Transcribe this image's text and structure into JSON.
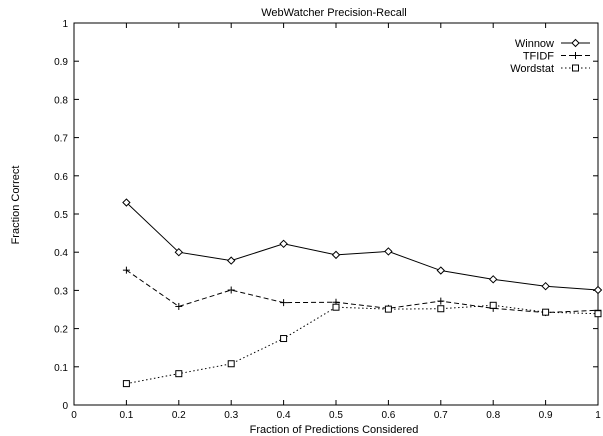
{
  "chart_data": {
    "type": "line",
    "title": "WebWatcher Precision-Recall",
    "xlabel": "Fraction of Predictions Considered",
    "ylabel": "Fraction Correct",
    "xlim": [
      0,
      1
    ],
    "ylim": [
      0,
      1
    ],
    "x_ticks": [
      "0",
      "0.1",
      "0.2",
      "0.3",
      "0.4",
      "0.5",
      "0.6",
      "0.7",
      "0.8",
      "0.9",
      "1"
    ],
    "y_ticks": [
      "0",
      "0.1",
      "0.2",
      "0.3",
      "0.4",
      "0.5",
      "0.6",
      "0.7",
      "0.8",
      "0.9",
      "1"
    ],
    "grid": false,
    "legend_position": "top-right",
    "x": [
      0.1,
      0.2,
      0.3,
      0.4,
      0.5,
      0.6,
      0.7,
      0.8,
      0.9,
      1.0
    ],
    "series": [
      {
        "name": "Winnow",
        "marker": "diamond",
        "line_style": "solid",
        "values": [
          0.53,
          0.4,
          0.378,
          0.422,
          0.393,
          0.402,
          0.352,
          0.329,
          0.311,
          0.301
        ]
      },
      {
        "name": "TFIDF",
        "marker": "plus",
        "line_style": "dashed",
        "values": [
          0.353,
          0.258,
          0.301,
          0.268,
          0.269,
          0.253,
          0.272,
          0.253,
          0.242,
          0.248
        ]
      },
      {
        "name": "Wordstat",
        "marker": "square",
        "line_style": "dotted",
        "values": [
          0.056,
          0.082,
          0.108,
          0.174,
          0.256,
          0.251,
          0.252,
          0.261,
          0.243,
          0.239
        ]
      }
    ]
  }
}
